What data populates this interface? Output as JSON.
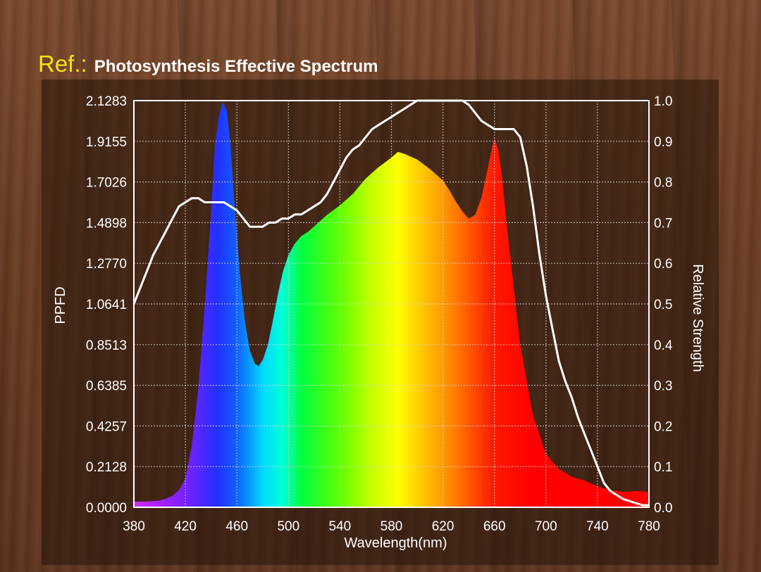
{
  "header": {
    "ref_label": "Ref.:",
    "title": "Photosynthesis Effective Spectrum"
  },
  "chart_data": {
    "type": "area",
    "title": "Photosynthesis Effective Spectrum",
    "xlabel": "Wavelength(nm)",
    "ylabel": "PPFD",
    "y2label": "Relative Strength",
    "xlim": [
      380,
      780
    ],
    "ylim": [
      0,
      2.1283
    ],
    "y2lim": [
      0,
      1.0
    ],
    "x_ticks": [
      "380",
      "420",
      "460",
      "500",
      "540",
      "580",
      "620",
      "660",
      "700",
      "740",
      "780"
    ],
    "y_ticks": [
      "0.0000",
      "0.2128",
      "0.4257",
      "0.6385",
      "0.8513",
      "1.0641",
      "1.2770",
      "1.4898",
      "1.7026",
      "1.9155",
      "2.1283"
    ],
    "y2_ticks": [
      "0.0",
      "0.1",
      "0.2",
      "0.3",
      "0.4",
      "0.5",
      "0.6",
      "0.7",
      "0.8",
      "0.9",
      "1.0"
    ],
    "grid": true,
    "colors": {
      "relative_line": "#ffffff",
      "grid": "#d8d8d8",
      "frame": "#ffffff"
    },
    "series": [
      {
        "axis": "left",
        "style": "spectrum-filled-area",
        "x": [
          380,
          390,
          400,
          405,
          410,
          415,
          420,
          425,
          430,
          435,
          440,
          443,
          446,
          449,
          452,
          455,
          458,
          462,
          466,
          470,
          474,
          477,
          480,
          484,
          488,
          492,
          496,
          500,
          505,
          510,
          515,
          520,
          530,
          540,
          550,
          560,
          570,
          580,
          585,
          590,
          600,
          610,
          620,
          625,
          630,
          635,
          640,
          645,
          650,
          655,
          658,
          660,
          663,
          666,
          670,
          675,
          680,
          690,
          700,
          710,
          720,
          730,
          740,
          750,
          760,
          770,
          780
        ],
        "values": [
          0.03,
          0.03,
          0.035,
          0.045,
          0.06,
          0.09,
          0.15,
          0.32,
          0.62,
          1.05,
          1.55,
          1.9,
          2.05,
          2.12,
          2.08,
          1.9,
          1.6,
          1.25,
          0.98,
          0.82,
          0.75,
          0.74,
          0.77,
          0.85,
          0.98,
          1.12,
          1.24,
          1.32,
          1.38,
          1.42,
          1.44,
          1.47,
          1.53,
          1.58,
          1.64,
          1.72,
          1.78,
          1.83,
          1.86,
          1.85,
          1.82,
          1.77,
          1.71,
          1.66,
          1.6,
          1.55,
          1.51,
          1.53,
          1.62,
          1.78,
          1.88,
          1.93,
          1.87,
          1.72,
          1.45,
          1.15,
          0.85,
          0.48,
          0.28,
          0.2,
          0.16,
          0.14,
          0.11,
          0.09,
          0.08,
          0.085,
          0.08
        ]
      },
      {
        "axis": "right",
        "style": "line",
        "x": [
          380,
          385,
          390,
          395,
          400,
          405,
          410,
          415,
          420,
          425,
          430,
          435,
          440,
          445,
          450,
          455,
          460,
          465,
          470,
          475,
          480,
          485,
          490,
          495,
          500,
          505,
          510,
          515,
          520,
          525,
          530,
          535,
          540,
          545,
          550,
          555,
          560,
          565,
          570,
          575,
          580,
          585,
          590,
          595,
          600,
          605,
          610,
          615,
          620,
          625,
          630,
          635,
          640,
          645,
          650,
          655,
          660,
          665,
          670,
          675,
          680,
          685,
          690,
          695,
          700,
          705,
          710,
          715,
          720,
          725,
          730,
          735,
          740,
          745,
          750,
          755,
          760,
          765,
          770,
          775,
          780
        ],
        "values": [
          0.5,
          0.54,
          0.58,
          0.62,
          0.65,
          0.68,
          0.71,
          0.74,
          0.75,
          0.76,
          0.76,
          0.75,
          0.75,
          0.75,
          0.75,
          0.74,
          0.73,
          0.71,
          0.69,
          0.69,
          0.69,
          0.7,
          0.7,
          0.71,
          0.71,
          0.72,
          0.72,
          0.73,
          0.74,
          0.75,
          0.77,
          0.8,
          0.83,
          0.86,
          0.88,
          0.89,
          0.91,
          0.93,
          0.94,
          0.95,
          0.96,
          0.97,
          0.98,
          0.99,
          1.0,
          1.0,
          1.0,
          1.0,
          1.0,
          1.0,
          1.0,
          1.0,
          0.99,
          0.97,
          0.95,
          0.94,
          0.93,
          0.93,
          0.93,
          0.93,
          0.91,
          0.84,
          0.74,
          0.62,
          0.52,
          0.44,
          0.36,
          0.31,
          0.27,
          0.22,
          0.18,
          0.14,
          0.1,
          0.06,
          0.04,
          0.03,
          0.02,
          0.015,
          0.01,
          0.005,
          0.005
        ]
      }
    ]
  }
}
